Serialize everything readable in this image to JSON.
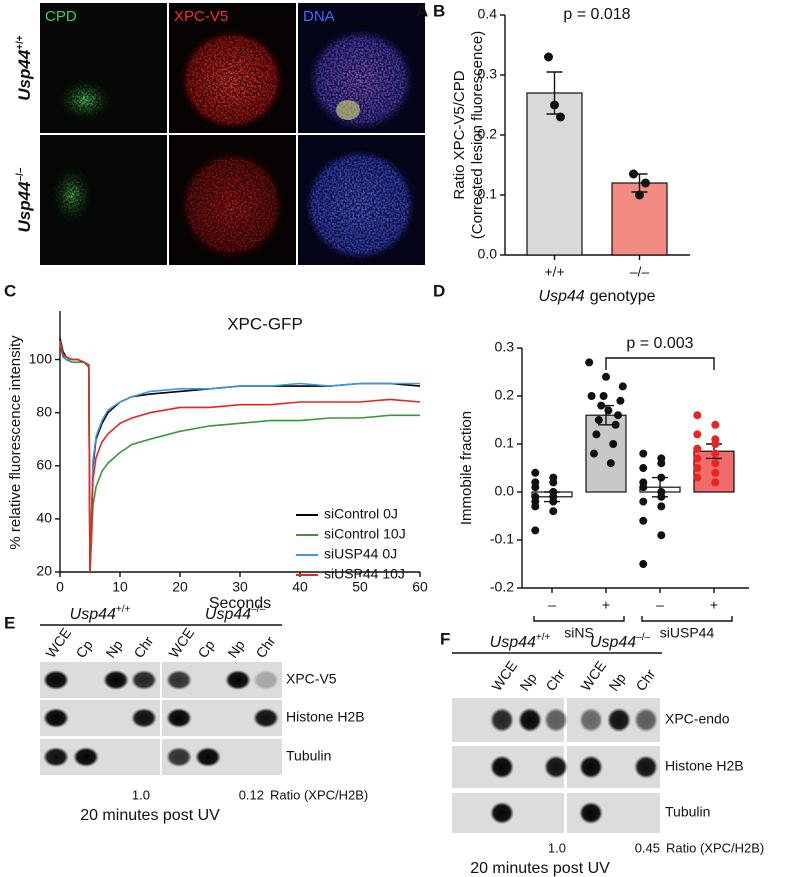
{
  "panel_labels": [
    "A",
    "B",
    "C",
    "D",
    "E",
    "F"
  ],
  "micro": {
    "columns": [
      "CPD",
      "XPC-V5",
      "DNA"
    ],
    "rows": [
      {
        "gene": "Usp44",
        "sup": "+/+"
      },
      {
        "gene": "Usp44",
        "sup": "–/–"
      }
    ]
  },
  "chart_data": [
    {
      "type": "bar",
      "annotation": "p = 0.018",
      "ylabel": [
        "Ratio XPC-V5/CPD",
        "(Corrected lesion fluorescence)"
      ],
      "xlabel": [
        "Usp44",
        "genotype"
      ],
      "categories": [
        "+/+",
        "–/–"
      ],
      "values": [
        0.27,
        0.12
      ],
      "errors": [
        0.035,
        0.015
      ],
      "colors": [
        "#d9d9d9",
        "#f28b82"
      ],
      "points": [
        [
          0.33,
          0.25,
          0.23
        ],
        [
          0.135,
          0.1,
          0.12
        ]
      ],
      "ylim": [
        0,
        0.4
      ],
      "yticks": [
        {
          "value": 0,
          "label": "0.0"
        },
        0.1,
        0.2,
        0.3,
        0.4
      ]
    },
    {
      "type": "line",
      "title": "XPC-GFP",
      "xlabel": "Seconds",
      "ylabel": "% relative fluorescence intensity",
      "x": [
        0,
        0.5,
        1,
        2,
        3,
        4,
        4.8,
        5,
        5.5,
        6,
        7,
        8,
        10,
        12,
        15,
        20,
        25,
        30,
        35,
        40,
        45,
        50,
        55,
        60
      ],
      "series": [
        {
          "name": "siControl 0J",
          "color": "#000000",
          "values": [
            108,
            103,
            101,
            100,
            100,
            99,
            98,
            20,
            60,
            70,
            76,
            80,
            84,
            86,
            87,
            88,
            89,
            90,
            90,
            90,
            90,
            91,
            91,
            90
          ]
        },
        {
          "name": "siControl 10J",
          "color": "#3a9a3a",
          "values": [
            106,
            101,
            100,
            99,
            99,
            99,
            97,
            20,
            45,
            52,
            58,
            61,
            65,
            68,
            70,
            73,
            75,
            76,
            77,
            77,
            78,
            78,
            79,
            79
          ]
        },
        {
          "name": "siUSP44 0J",
          "color": "#3b9be0",
          "values": [
            107,
            102,
            100,
            100,
            100,
            99,
            98,
            20,
            62,
            71,
            77,
            81,
            84,
            86,
            88,
            89,
            89,
            90,
            90,
            91,
            90,
            91,
            91,
            91
          ]
        },
        {
          "name": "siUSP44 10J",
          "color": "#e8251f",
          "values": [
            107,
            102,
            101,
            100,
            100,
            99,
            98,
            20,
            55,
            63,
            69,
            72,
            76,
            78,
            80,
            82,
            82,
            83,
            83,
            84,
            84,
            84,
            85,
            84
          ]
        }
      ],
      "xlim": [
        0,
        60
      ],
      "xticks": [
        0,
        10,
        20,
        30,
        40,
        50,
        60
      ],
      "ylim": [
        20,
        110
      ],
      "yticks": [
        20,
        40,
        60,
        80,
        100
      ]
    },
    {
      "type": "bar",
      "annotation": "p = 0.003",
      "ylabel": "Immobile fraction",
      "categories": [
        "–",
        "+",
        "–",
        "+"
      ],
      "groups": [
        "siNS",
        "siUSP44"
      ],
      "values": [
        -0.01,
        0.16,
        0.01,
        0.085
      ],
      "errors": [
        0.01,
        0.02,
        0.02,
        0.015
      ],
      "colors": [
        "#ffffff",
        "#c8c8c8",
        "#ffffff",
        "#f26b6b"
      ],
      "point_colors": [
        "#111111",
        "#111111",
        "#111111",
        "#e8251f"
      ],
      "points": [
        [
          0.04,
          0.03,
          0.02,
          0.0,
          -0.01,
          -0.02,
          -0.03,
          -0.01,
          0.01,
          -0.04,
          -0.08,
          0.0,
          -0.02,
          0.02
        ],
        [
          0.27,
          0.24,
          0.22,
          0.2,
          0.19,
          0.18,
          0.16,
          0.15,
          0.14,
          0.12,
          0.1,
          0.08,
          0.06,
          0.2,
          0.17
        ],
        [
          0.08,
          0.07,
          0.05,
          0.03,
          0.02,
          0.0,
          -0.02,
          -0.03,
          -0.06,
          -0.09,
          -0.15,
          0.06,
          0.01,
          -0.01
        ],
        [
          0.16,
          0.14,
          0.12,
          0.1,
          0.09,
          0.08,
          0.07,
          0.06,
          0.05,
          0.04,
          0.03,
          0.11,
          0.09,
          0.02
        ]
      ],
      "ylim": [
        -0.2,
        0.3
      ],
      "yticks": [
        -0.2,
        -0.1,
        {
          "value": 0,
          "label": "0.0"
        },
        0.1,
        0.2,
        0.3
      ]
    }
  ],
  "blot_e": {
    "genotypes": [
      {
        "gene": "Usp44",
        "sup": "+/+"
      },
      {
        "gene": "Usp44",
        "sup": "–/–"
      }
    ],
    "lanes": [
      "WCE",
      "Cp",
      "Np",
      "Chr",
      "WCE",
      "Cp",
      "Np",
      "Chr"
    ],
    "rows": [
      "XPC-V5",
      "Histone H2B",
      "Tubulin"
    ],
    "ratios": [
      "1.0",
      "0.12"
    ],
    "ratio_label": "Ratio (XPC/H2B)",
    "footer": "20 minutes post UV"
  },
  "blot_f": {
    "genotypes": [
      {
        "gene": "Usp44",
        "sup": "+/+"
      },
      {
        "gene": "Usp44",
        "sup": "–/–"
      }
    ],
    "lanes": [
      "WCE",
      "Np",
      "Chr",
      "WCE",
      "Np",
      "Chr"
    ],
    "rows": [
      "XPC-endo",
      "Histone H2B",
      "Tubulin"
    ],
    "ratios": [
      "1.0",
      "0.45"
    ],
    "ratio_label": "Ratio (XPC/H2B)",
    "footer": "20 minutes post UV"
  }
}
